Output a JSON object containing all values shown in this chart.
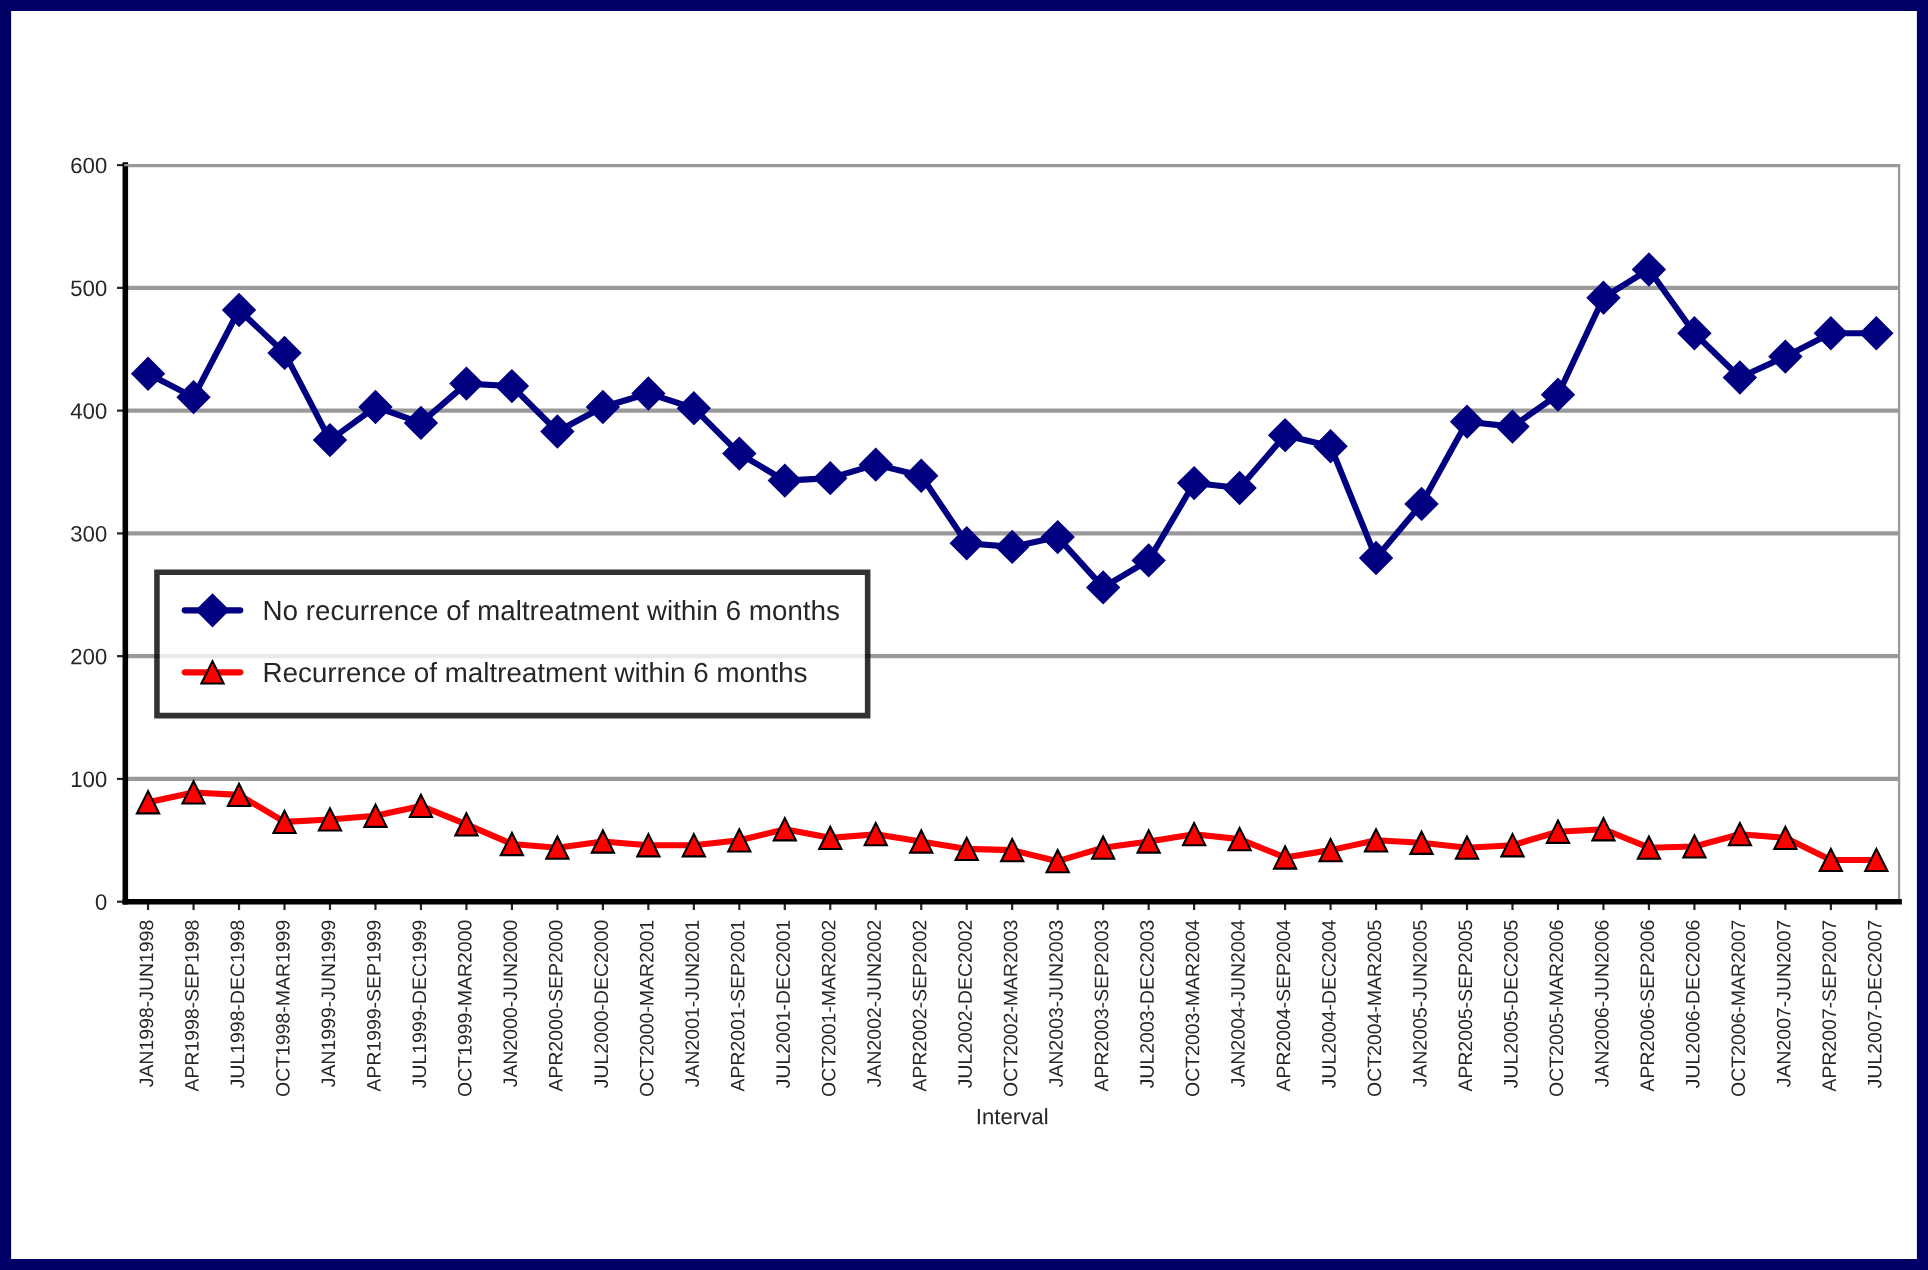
{
  "chart_data": {
    "type": "line",
    "xlabel": "Interval",
    "categories": [
      "JAN1998-JUN1998",
      "APR1998-SEP1998",
      "JUL1998-DEC1998",
      "OCT1998-MAR1999",
      "JAN1999-JUN1999",
      "APR1999-SEP1999",
      "JUL1999-DEC1999",
      "OCT1999-MAR2000",
      "JAN2000-JUN2000",
      "APR2000-SEP2000",
      "JUL2000-DEC2000",
      "OCT2000-MAR2001",
      "JAN2001-JUN2001",
      "APR2001-SEP2001",
      "JUL2001-DEC2001",
      "OCT2001-MAR2002",
      "JAN2002-JUN2002",
      "APR2002-SEP2002",
      "JUL2002-DEC2002",
      "OCT2002-MAR2003",
      "JAN2003-JUN2003",
      "APR2003-SEP2003",
      "JUL2003-DEC2003",
      "OCT2003-MAR2004",
      "JAN2004-JUN2004",
      "APR2004-SEP2004",
      "JUL2004-DEC2004",
      "OCT2004-MAR2005",
      "JAN2005-JUN2005",
      "APR2005-SEP2005",
      "JUL2005-DEC2005",
      "OCT2005-MAR2006",
      "JAN2006-JUN2006",
      "APR2006-SEP2006",
      "JUL2006-DEC2006",
      "OCT2006-MAR2007",
      "JAN2007-JUN2007",
      "APR2007-SEP2007",
      "JUL2007-DEC2007"
    ],
    "series": [
      {
        "name": "No recurrence of maltreatment within 6 months",
        "color": "#000080",
        "marker": "diamond",
        "values": [
          430,
          411,
          482,
          447,
          376,
          403,
          390,
          422,
          420,
          383,
          403,
          414,
          402,
          365,
          343,
          345,
          356,
          347,
          292,
          289,
          297,
          256,
          278,
          341,
          337,
          380,
          371,
          280,
          324,
          391,
          387,
          413,
          492,
          515,
          463,
          427,
          444,
          463,
          463
        ]
      },
      {
        "name": "Recurrence of maltreatment within 6 months",
        "color": "#ff0000",
        "marker": "triangle",
        "values": [
          81,
          89,
          87,
          65,
          67,
          70,
          78,
          63,
          47,
          44,
          49,
          46,
          46,
          50,
          59,
          52,
          55,
          49,
          43,
          42,
          33,
          44,
          49,
          55,
          51,
          36,
          42,
          50,
          48,
          44,
          46,
          57,
          59,
          44,
          45,
          55,
          52,
          34,
          34
        ]
      }
    ],
    "ylim": [
      0,
      600
    ],
    "yticks": [
      0,
      100,
      200,
      300,
      400,
      500,
      600
    ],
    "grid": "y",
    "legend": "center left",
    "line_style": "solid"
  }
}
